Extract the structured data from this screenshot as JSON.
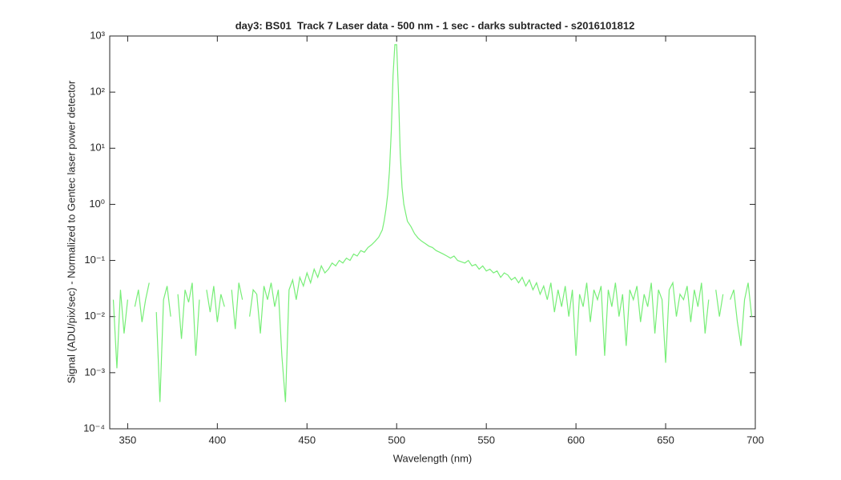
{
  "chart_data": {
    "type": "line",
    "title": "day3: BS01  Track 7 Laser data - 500 nm - 1 sec - darks subtracted - s2016101812",
    "x_label": "Wavelength (nm)",
    "y_label": "Signal (ADU/pix/sec) - Normalized to Gentec laser power detector",
    "xlim": [
      340,
      700
    ],
    "xticks": [
      350,
      400,
      450,
      500,
      550,
      600,
      650,
      700
    ],
    "ylim": [
      0.0001,
      1000
    ],
    "y_scale": "log",
    "yticks": [
      {
        "value": 0.0001,
        "label": "10⁻⁴"
      },
      {
        "value": 0.001,
        "label": "10⁻³"
      },
      {
        "value": 0.01,
        "label": "10⁻²"
      },
      {
        "value": 0.1,
        "label": "10⁻¹"
      },
      {
        "value": 1,
        "label": "10⁰"
      },
      {
        "value": 10,
        "label": "10¹"
      },
      {
        "value": 100,
        "label": "10²"
      },
      {
        "value": 1000,
        "label": "10³"
      }
    ],
    "grid": false,
    "x": [
      342,
      344,
      346,
      348,
      350,
      352,
      354,
      356,
      358,
      360,
      362,
      364,
      366,
      368,
      370,
      372,
      374,
      376,
      378,
      380,
      382,
      384,
      386,
      388,
      390,
      392,
      394,
      396,
      398,
      400,
      402,
      404,
      406,
      408,
      410,
      412,
      414,
      416,
      418,
      420,
      422,
      424,
      426,
      428,
      430,
      432,
      434,
      436,
      438,
      440,
      442,
      444,
      446,
      448,
      450,
      452,
      454,
      456,
      458,
      460,
      462,
      464,
      466,
      468,
      470,
      472,
      474,
      476,
      478,
      480,
      482,
      484,
      486,
      488,
      490,
      492,
      493,
      494,
      495,
      496,
      497,
      498,
      499,
      500,
      501,
      502,
      503,
      504,
      505,
      506,
      508,
      510,
      512,
      514,
      516,
      518,
      520,
      522,
      524,
      526,
      528,
      530,
      532,
      534,
      536,
      538,
      540,
      542,
      544,
      546,
      548,
      550,
      552,
      554,
      556,
      558,
      560,
      562,
      564,
      566,
      568,
      570,
      572,
      574,
      576,
      578,
      580,
      582,
      584,
      586,
      588,
      590,
      592,
      594,
      596,
      598,
      600,
      602,
      604,
      606,
      608,
      610,
      612,
      614,
      616,
      618,
      620,
      622,
      624,
      626,
      628,
      630,
      632,
      634,
      636,
      638,
      640,
      642,
      644,
      646,
      648,
      650,
      652,
      654,
      656,
      658,
      660,
      662,
      664,
      666,
      668,
      670,
      672,
      674,
      676,
      678,
      680,
      682,
      684,
      686,
      688,
      690,
      692,
      694,
      696,
      698
    ],
    "series": [
      {
        "name": "Signal",
        "color": "#77ee77",
        "values": [
          0.02,
          0.0012,
          0.03,
          0.005,
          0.02,
          null,
          0.015,
          0.03,
          0.008,
          0.02,
          0.04,
          null,
          0.012,
          0.0003,
          0.02,
          0.035,
          0.01,
          null,
          0.025,
          0.004,
          0.03,
          0.018,
          0.04,
          0.002,
          0.02,
          null,
          0.03,
          0.012,
          0.035,
          0.008,
          0.025,
          0.015,
          null,
          0.03,
          0.006,
          0.04,
          0.02,
          null,
          0.01,
          0.03,
          0.025,
          0.005,
          0.035,
          0.02,
          0.04,
          0.015,
          0.03,
          0.002,
          0.0003,
          0.03,
          0.045,
          0.02,
          0.05,
          0.035,
          0.06,
          0.04,
          0.07,
          0.05,
          0.08,
          0.06,
          0.07,
          0.09,
          0.08,
          0.1,
          0.09,
          0.11,
          0.1,
          0.13,
          0.12,
          0.15,
          0.14,
          0.17,
          0.19,
          0.22,
          0.26,
          0.35,
          0.5,
          0.8,
          1.5,
          4,
          20,
          200,
          700,
          700,
          100,
          8,
          2,
          1,
          0.7,
          0.5,
          0.4,
          0.3,
          0.25,
          0.22,
          0.2,
          0.18,
          0.17,
          0.15,
          0.14,
          0.13,
          0.12,
          0.11,
          0.12,
          0.1,
          0.095,
          0.09,
          0.1,
          0.08,
          0.085,
          0.07,
          0.08,
          0.065,
          0.07,
          0.06,
          0.065,
          0.05,
          0.06,
          0.055,
          0.045,
          0.05,
          0.04,
          0.05,
          0.035,
          0.045,
          0.03,
          0.04,
          0.025,
          0.035,
          0.02,
          0.04,
          0.012,
          0.03,
          0.015,
          0.035,
          0.01,
          0.03,
          0.002,
          0.025,
          0.015,
          0.04,
          0.008,
          0.03,
          0.02,
          0.035,
          0.002,
          0.03,
          0.015,
          0.04,
          0.01,
          0.025,
          0.003,
          0.03,
          0.02,
          0.035,
          0.008,
          0.025,
          0.015,
          0.04,
          0.005,
          0.03,
          0.02,
          0.0015,
          0.03,
          0.04,
          0.01,
          0.025,
          0.02,
          0.035,
          0.008,
          0.03,
          0.015,
          0.04,
          0.005,
          0.02,
          null,
          0.03,
          0.01,
          0.025,
          null,
          0.02,
          0.03,
          0.008,
          0.003,
          0.02,
          0.04,
          0.01
        ]
      }
    ]
  }
}
